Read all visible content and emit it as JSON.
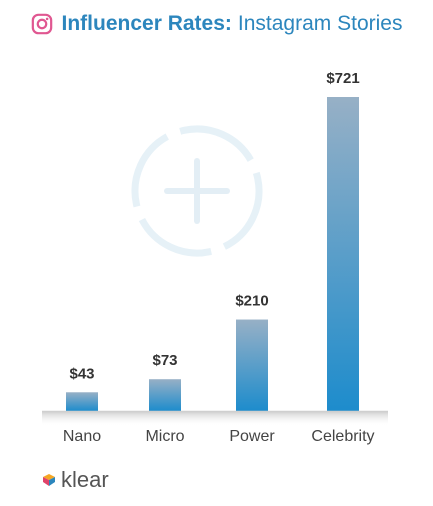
{
  "title": {
    "icon": "instagram-icon",
    "bold": "Influencer Rates:",
    "light": "Instagram Stories",
    "color": "#2c86bd"
  },
  "chart_data": {
    "type": "bar",
    "title": "Influencer Rates: Instagram Stories",
    "categories": [
      "Nano",
      "Micro",
      "Power",
      "Celebrity"
    ],
    "values": [
      43,
      73,
      210,
      721
    ],
    "labels": [
      "$43",
      "$73",
      "$210",
      "$721"
    ],
    "ylim": [
      0,
      721
    ],
    "grid": false,
    "legend": "none",
    "bar_color_top": "#97b0c6",
    "bar_color_bottom": "#1d8ccc"
  },
  "watermark": {
    "icon": "plus-circle-icon"
  },
  "brand": {
    "name": "klear",
    "icon": "klear-logo-icon"
  }
}
